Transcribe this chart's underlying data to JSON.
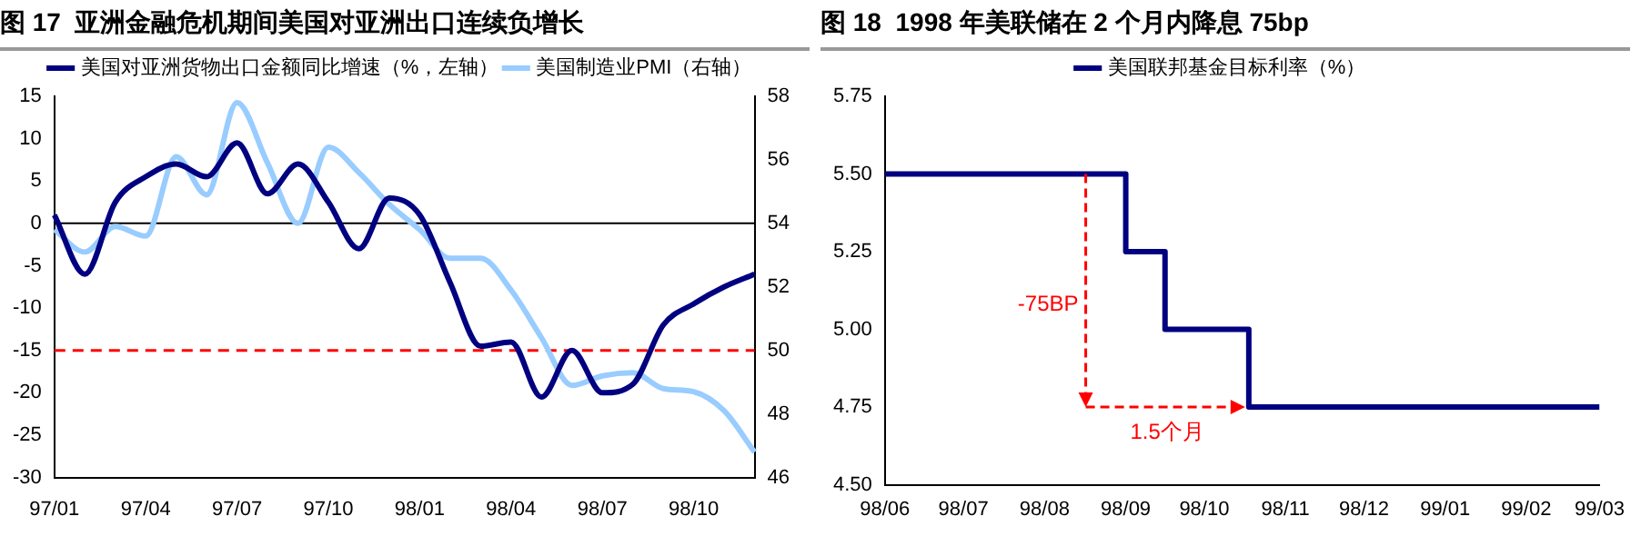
{
  "chart_data": [
    {
      "type": "line",
      "title": "图 17  亚洲金融危机期间美国对亚洲出口连续负增长",
      "legend": "top",
      "grid": false,
      "categories": [
        "97/01",
        null,
        null,
        "97/04",
        null,
        null,
        "97/07",
        null,
        null,
        "97/10",
        null,
        null,
        "98/01",
        null,
        null,
        "98/04",
        null,
        null,
        "98/07",
        null,
        null,
        "98/10",
        null,
        null
      ],
      "ylim": [
        -30,
        15
      ],
      "yticks": [
        -30,
        -25,
        -20,
        -15,
        -10,
        -5,
        0,
        5,
        10,
        15
      ],
      "y2lim": [
        46,
        58
      ],
      "y2ticks": [
        46,
        48,
        50,
        52,
        54,
        56,
        58
      ],
      "ref_lines": [
        {
          "axis": "y",
          "value": -15,
          "color": "#ff0000",
          "line_style": "dashed"
        },
        {
          "axis": "y",
          "value": 0,
          "color": "#000000",
          "line_style": "solid"
        }
      ],
      "series": [
        {
          "name": "美国对亚洲货物出口金额同比增速（%，左轴）",
          "color": "#000080",
          "values": [
            1,
            -6,
            2.5,
            5.5,
            7,
            5.5,
            9.5,
            3.5,
            7,
            2.5,
            -3,
            3,
            1,
            -7,
            -14.5,
            -14,
            -20.5,
            -15,
            -20,
            -19,
            -12,
            -9.5,
            -7.5,
            -6
          ]
        },
        {
          "name": "美国制造业PMI（右轴）",
          "color": "#99ccff",
          "axis": "y2",
          "values": [
            53.8,
            53.1,
            53.9,
            53.6,
            56.1,
            54.9,
            57.8,
            55.9,
            54.0,
            56.4,
            55.6,
            54.6,
            53.8,
            52.9,
            52.9,
            51.9,
            50.4,
            48.9,
            49.2,
            49.3,
            48.8,
            48.7,
            48.1,
            46.8
          ]
        }
      ]
    },
    {
      "type": "step",
      "title": "图 18  1998 年美联储在 2 个月内降息 75bp",
      "legend": "top",
      "grid": false,
      "x": [
        "1998-06-01",
        "1998-09-01",
        "1998-09-16",
        "1998-10-18",
        "1999-03-01"
      ],
      "xlim": [
        "1998-06-01",
        "1999-03-01"
      ],
      "xticks": [
        {
          "value": "1998-06",
          "label": "98/06"
        },
        {
          "value": "1998-07",
          "label": "98/07"
        },
        {
          "value": "1998-08",
          "label": "98/08"
        },
        {
          "value": "1998-09",
          "label": "98/09"
        },
        {
          "value": "1998-10",
          "label": "98/10"
        },
        {
          "value": "1998-11",
          "label": "98/11"
        },
        {
          "value": "1998-12",
          "label": "98/12"
        },
        {
          "value": "1999-01",
          "label": "99/01"
        },
        {
          "value": "1999-02",
          "label": "99/02"
        },
        {
          "value": "1999-03",
          "label": "99/03"
        }
      ],
      "ylim": [
        4.5,
        5.75
      ],
      "yticks": [
        {
          "value": 4.5,
          "label": "4.50"
        },
        {
          "value": 4.75,
          "label": "4.75"
        },
        {
          "value": 5,
          "label": "5.00"
        },
        {
          "value": 5.25,
          "label": "5.25"
        },
        {
          "value": 5.5,
          "label": "5.50"
        },
        {
          "value": 5.75,
          "label": "5.75"
        }
      ],
      "annotations": [
        "-75BP",
        "1.5个月"
      ],
      "series": [
        {
          "name": "美国联邦基金目标利率（%）",
          "color": "#000080",
          "values": [
            5.5,
            5.25,
            5.0,
            4.75,
            4.75
          ]
        }
      ]
    }
  ]
}
